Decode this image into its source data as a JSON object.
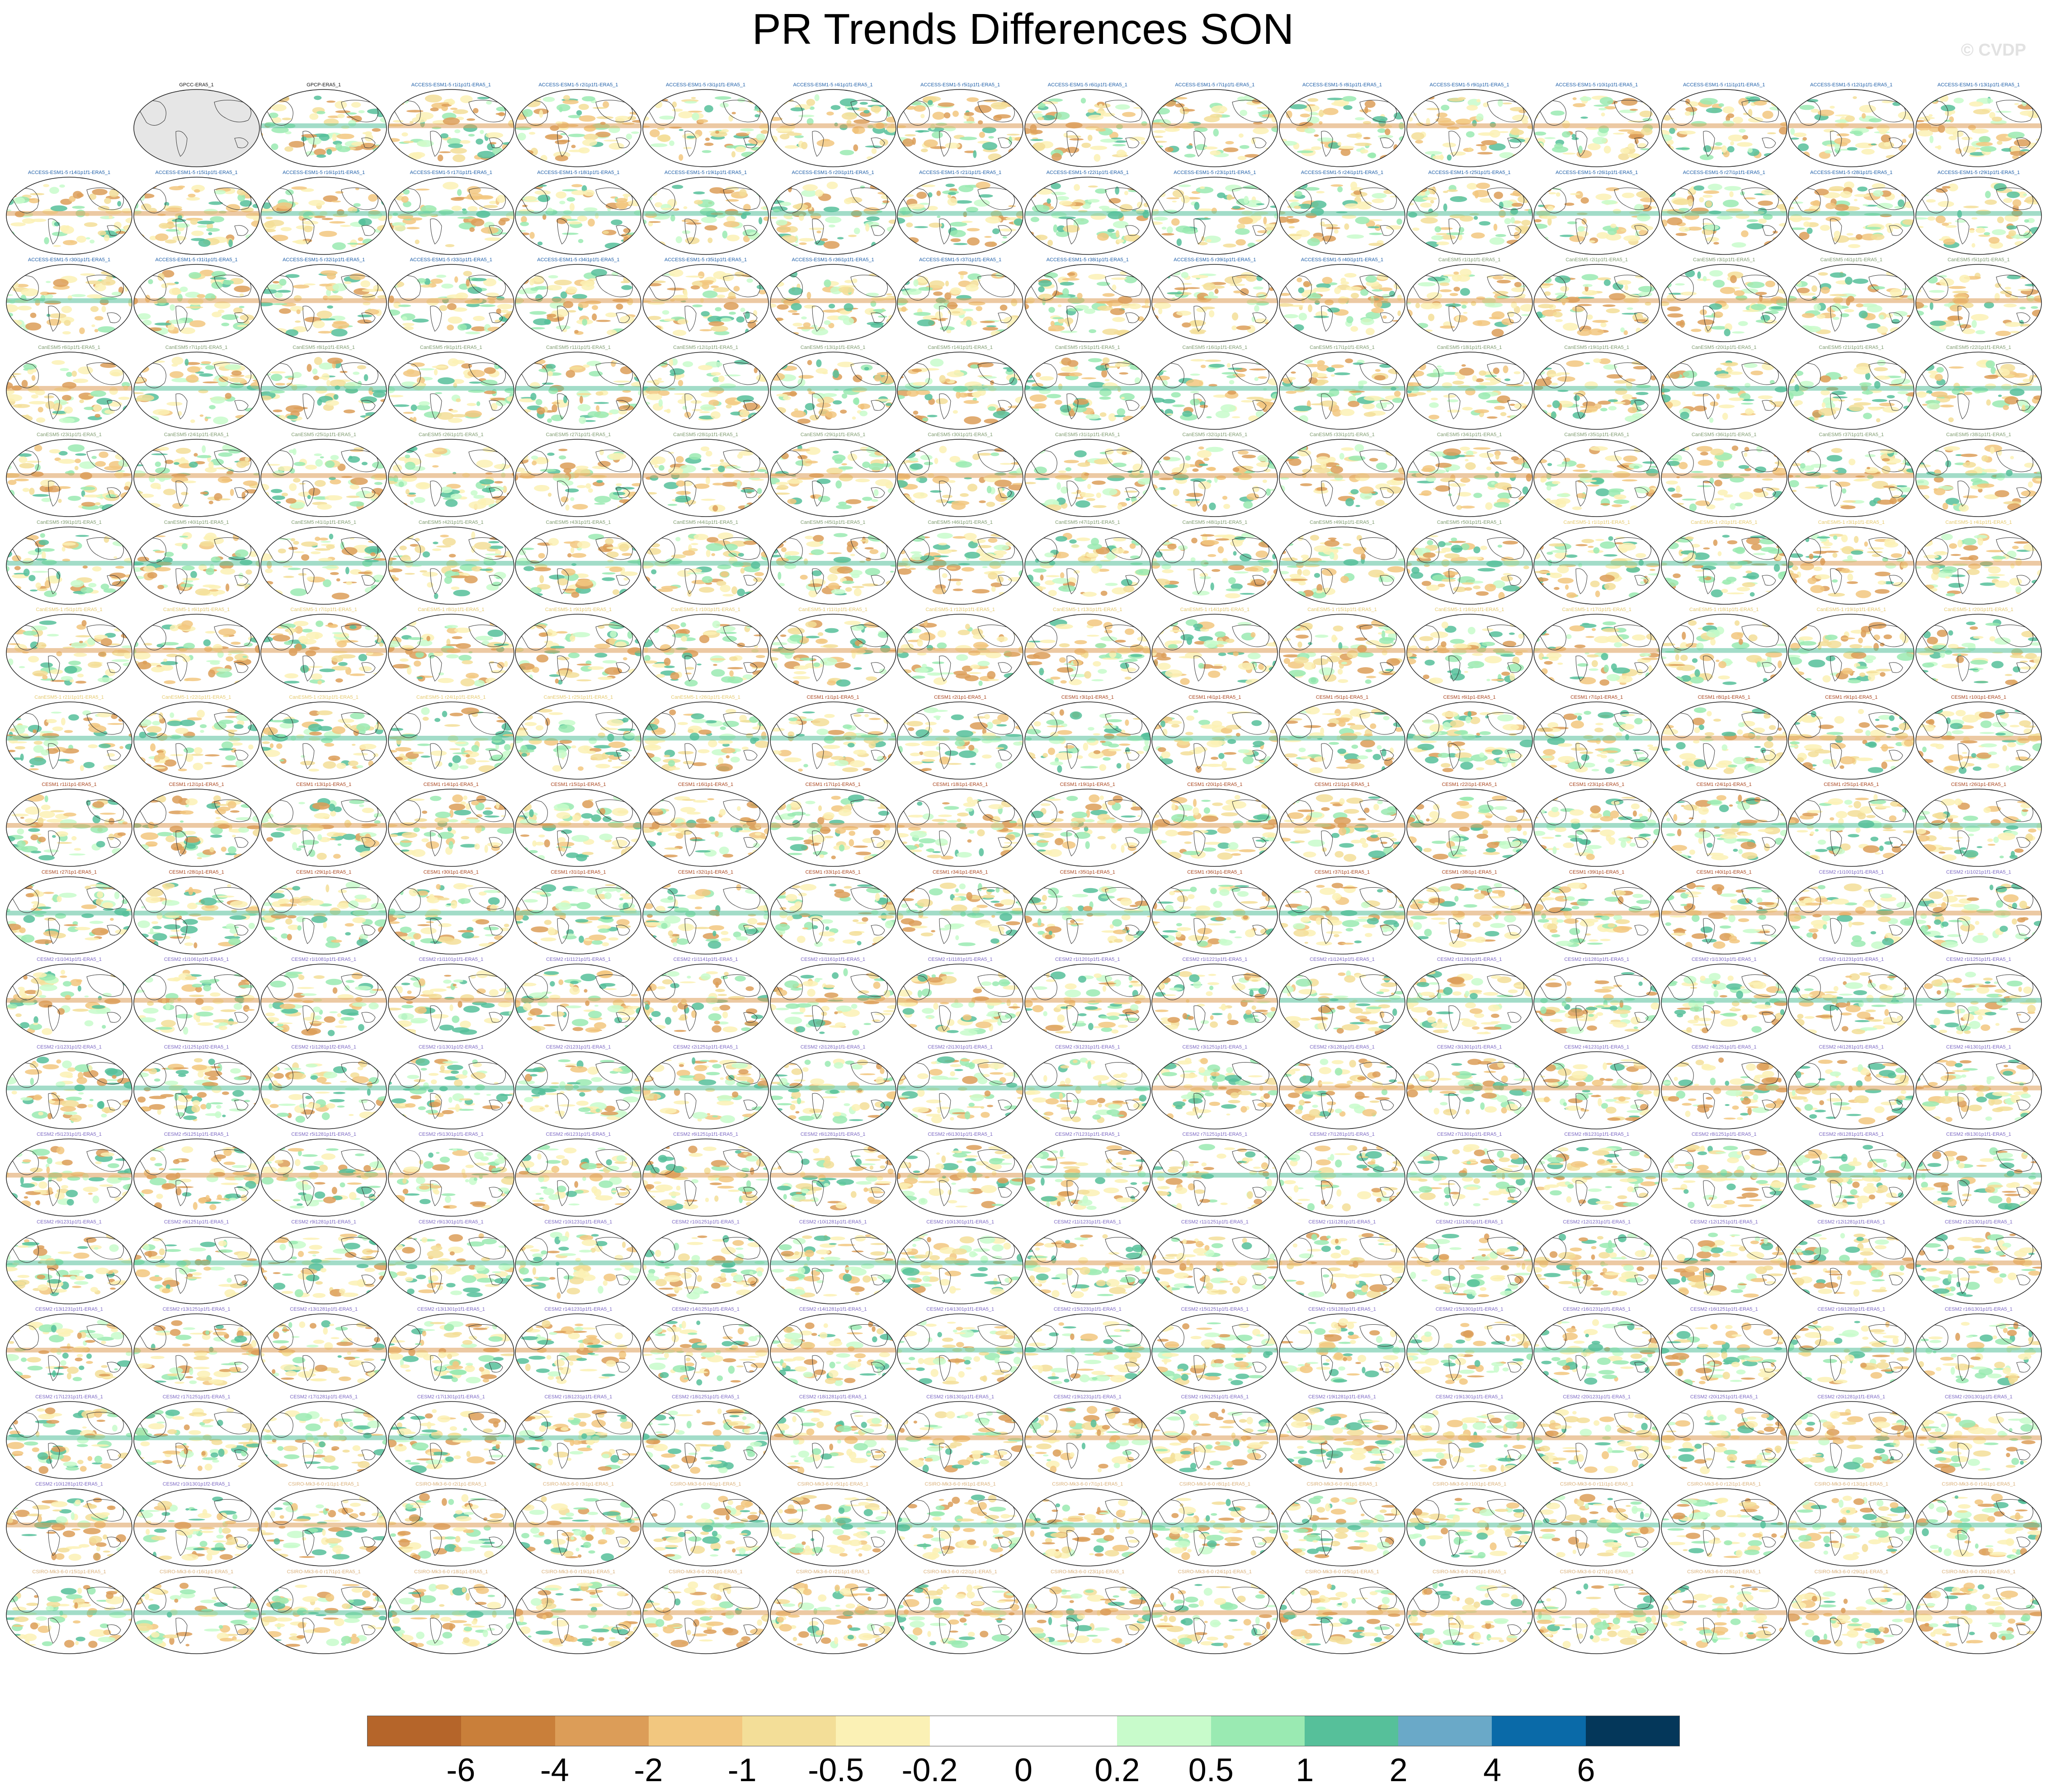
{
  "title": "PR Trends Differences SON",
  "watermark": "© CVDP",
  "colorbar": {
    "colors": [
      "#b5652a",
      "#c97f3a",
      "#dc9d58",
      "#f2c77f",
      "#f3de98",
      "#fbf1b5",
      "#ffffff",
      "#ffffff",
      "#c8fbcb",
      "#9aeab2",
      "#56c09a",
      "#6aa9c8",
      "#0a6aa8",
      "#04375a"
    ],
    "labels": [
      "-6",
      "-4",
      "-2",
      "-1",
      "-0.5",
      "-0.2",
      "0",
      "0.2",
      "0.5",
      "1",
      "2",
      "4",
      "6"
    ]
  },
  "panel_titles": [
    "GPCC-ERA5_1",
    "GPCP-ERA5_1",
    "ACCESS-ESM1-5 r1i1p1f1-ERA5_1",
    "ACCESS-ESM1-5 r2i1p1f1-ERA5_1",
    "ACCESS-ESM1-5 r3i1p1f1-ERA5_1",
    "ACCESS-ESM1-5 r4i1p1f1-ERA5_1",
    "ACCESS-ESM1-5 r5i1p1f1-ERA5_1",
    "ACCESS-ESM1-5 r6i1p1f1-ERA5_1",
    "ACCESS-ESM1-5 r7i1p1f1-ERA5_1",
    "ACCESS-ESM1-5 r8i1p1f1-ERA5_1",
    "ACCESS-ESM1-5 r9i1p1f1-ERA5_1",
    "ACCESS-ESM1-5 r10i1p1f1-ERA5_1",
    "ACCESS-ESM1-5 r11i1p1f1-ERA5_1",
    "ACCESS-ESM1-5 r12i1p1f1-ERA5_1",
    "ACCESS-ESM1-5 r13i1p1f1-ERA5_1",
    "ACCESS-ESM1-5 r14i1p1f1-ERA5_1",
    "ACCESS-ESM1-5 r15i1p1f1-ERA5_1",
    "ACCESS-ESM1-5 r16i1p1f1-ERA5_1",
    "ACCESS-ESM1-5 r17i1p1f1-ERA5_1",
    "ACCESS-ESM1-5 r18i1p1f1-ERA5_1",
    "ACCESS-ESM1-5 r19i1p1f1-ERA5_1",
    "ACCESS-ESM1-5 r20i1p1f1-ERA5_1",
    "ACCESS-ESM1-5 r21i1p1f1-ERA5_1",
    "ACCESS-ESM1-5 r22i1p1f1-ERA5_1",
    "ACCESS-ESM1-5 r23i1p1f1-ERA5_1",
    "ACCESS-ESM1-5 r24i1p1f1-ERA5_1",
    "ACCESS-ESM1-5 r25i1p1f1-ERA5_1",
    "ACCESS-ESM1-5 r26i1p1f1-ERA5_1",
    "ACCESS-ESM1-5 r27i1p1f1-ERA5_1",
    "ACCESS-ESM1-5 r28i1p1f1-ERA5_1",
    "ACCESS-ESM1-5 r29i1p1f1-ERA5_1",
    "ACCESS-ESM1-5 r30i1p1f1-ERA5_1",
    "ACCESS-ESM1-5 r31i1p1f1-ERA5_1",
    "ACCESS-ESM1-5 r32i1p1f1-ERA5_1",
    "ACCESS-ESM1-5 r33i1p1f1-ERA5_1",
    "ACCESS-ESM1-5 r34i1p1f1-ERA5_1",
    "ACCESS-ESM1-5 r35i1p1f1-ERA5_1",
    "ACCESS-ESM1-5 r36i1p1f1-ERA5_1",
    "ACCESS-ESM1-5 r37i1p1f1-ERA5_1",
    "ACCESS-ESM1-5 r38i1p1f1-ERA5_1",
    "ACCESS-ESM1-5 r39i1p1f1-ERA5_1",
    "ACCESS-ESM1-5 r40i1p1f1-ERA5_1",
    "CanESM5 r1i1p1f1-ERA5_1",
    "CanESM5 r2i1p1f1-ERA5_1",
    "CanESM5 r3i1p1f1-ERA5_1",
    "CanESM5 r4i1p1f1-ERA5_1",
    "CanESM5 r5i1p1f1-ERA5_1",
    "CanESM5 r6i1p1f1-ERA5_1",
    "CanESM5 r7i1p1f1-ERA5_1",
    "CanESM5 r8i1p1f1-ERA5_1",
    "CanESM5 r9i1p1f1-ERA5_1",
    "CanESM5 r11i1p1f1-ERA5_1",
    "CanESM5 r12i1p1f1-ERA5_1",
    "CanESM5 r13i1p1f1-ERA5_1",
    "CanESM5 r14i1p1f1-ERA5_1",
    "CanESM5 r15i1p1f1-ERA5_1",
    "CanESM5 r16i1p1f1-ERA5_1",
    "CanESM5 r17i1p1f1-ERA5_1",
    "CanESM5 r18i1p1f1-ERA5_1",
    "CanESM5 r19i1p1f1-ERA5_1",
    "CanESM5 r20i1p1f1-ERA5_1",
    "CanESM5 r21i1p1f1-ERA5_1",
    "CanESM5 r22i1p1f1-ERA5_1",
    "CanESM5 r23i1p1f1-ERA5_1",
    "CanESM5 r24i1p1f1-ERA5_1",
    "CanESM5 r25i1p1f1-ERA5_1",
    "CanESM5 r26i1p1f1-ERA5_1",
    "CanESM5 r27i1p1f1-ERA5_1",
    "CanESM5 r28i1p1f1-ERA5_1",
    "CanESM5 r29i1p1f1-ERA5_1",
    "CanESM5 r30i1p1f1-ERA5_1",
    "CanESM5 r31i1p1f1-ERA5_1",
    "CanESM5 r32i1p1f1-ERA5_1",
    "CanESM5 r33i1p1f1-ERA5_1",
    "CanESM5 r34i1p1f1-ERA5_1",
    "CanESM5 r35i1p1f1-ERA5_1",
    "CanESM5 r36i1p1f1-ERA5_1",
    "CanESM5 r37i1p1f1-ERA5_1",
    "CanESM5 r38i1p1f1-ERA5_1",
    "CanESM5 r39i1p1f1-ERA5_1",
    "CanESM5 r40i1p1f1-ERA5_1",
    "CanESM5 r41i1p1f1-ERA5_1",
    "CanESM5 r42i1p1f1-ERA5_1",
    "CanESM5 r43i1p1f1-ERA5_1",
    "CanESM5 r44i1p1f1-ERA5_1",
    "CanESM5 r45i1p1f1-ERA5_1",
    "CanESM5 r46i1p1f1-ERA5_1",
    "CanESM5 r47i1p1f1-ERA5_1",
    "CanESM5 r48i1p1f1-ERA5_1",
    "CanESM5 r49i1p1f1-ERA5_1",
    "CanESM5 r50i1p1f1-ERA5_1",
    "CanESM5-1 r1i1p1f1-ERA5_1",
    "CanESM5-1 r2i1p1f1-ERA5_1",
    "CanESM5-1 r3i1p1f1-ERA5_1",
    "CanESM5-1 r4i1p1f1-ERA5_1",
    "CanESM5-1 r5i1p1f1-ERA5_1",
    "CanESM5-1 r6i1p1f1-ERA5_1",
    "CanESM5-1 r7i1p1f1-ERA5_1",
    "CanESM5-1 r8i1p1f1-ERA5_1",
    "CanESM5-1 r9i1p1f1-ERA5_1",
    "CanESM5-1 r10i1p1f1-ERA5_1",
    "CanESM5-1 r11i1p1f1-ERA5_1",
    "CanESM5-1 r12i1p1f1-ERA5_1",
    "CanESM5-1 r13i1p1f1-ERA5_1",
    "CanESM5-1 r14i1p1f1-ERA5_1",
    "CanESM5-1 r15i1p1f1-ERA5_1",
    "CanESM5-1 r16i1p1f1-ERA5_1",
    "CanESM5-1 r17i1p1f1-ERA5_1",
    "CanESM5-1 r18i1p1f1-ERA5_1",
    "CanESM5-1 r19i1p1f1-ERA5_1",
    "CanESM5-1 r20i1p1f1-ERA5_1",
    "CanESM5-1 r21i1p1f1-ERA5_1",
    "CanESM5-1 r22i1p1f1-ERA5_1",
    "CanESM5-1 r23i1p1f1-ERA5_1",
    "CanESM5-1 r24i1p1f1-ERA5_1",
    "CanESM5-1 r25i1p1f1-ERA5_1",
    "CanESM5-1 r26i1p1f1-ERA5_1",
    "CESM1 r1i1p1-ERA5_1",
    "CESM1 r2i1p1-ERA5_1",
    "CESM1 r3i1p1-ERA5_1",
    "CESM1 r4i1p1-ERA5_1",
    "CESM1 r5i1p1-ERA5_1",
    "CESM1 r6i1p1-ERA5_1",
    "CESM1 r7i1p1-ERA5_1",
    "CESM1 r8i1p1-ERA5_1",
    "CESM1 r9i1p1-ERA5_1",
    "CESM1 r10i1p1-ERA5_1",
    "CESM1 r11i1p1-ERA5_1",
    "CESM1 r12i1p1-ERA5_1",
    "CESM1 r13i1p1-ERA5_1",
    "CESM1 r14i1p1-ERA5_1",
    "CESM1 r15i1p1-ERA5_1",
    "CESM1 r16i1p1-ERA5_1",
    "CESM1 r17i1p1-ERA5_1",
    "CESM1 r18i1p1-ERA5_1",
    "CESM1 r19i1p1-ERA5_1",
    "CESM1 r20i1p1-ERA5_1",
    "CESM1 r21i1p1-ERA5_1",
    "CESM1 r22i1p1-ERA5_1",
    "CESM1 r23i1p1-ERA5_1",
    "CESM1 r24i1p1-ERA5_1",
    "CESM1 r25i1p1-ERA5_1",
    "CESM1 r26i1p1-ERA5_1",
    "CESM1 r27i1p1-ERA5_1",
    "CESM1 r28i1p1-ERA5_1",
    "CESM1 r29i1p1-ERA5_1",
    "CESM1 r30i1p1-ERA5_1",
    "CESM1 r31i1p1-ERA5_1",
    "CESM1 r32i1p1-ERA5_1",
    "CESM1 r33i1p1-ERA5_1",
    "CESM1 r34i1p1-ERA5_1",
    "CESM1 r35i1p1-ERA5_1",
    "CESM1 r36i1p1-ERA5_1",
    "CESM1 r37i1p1-ERA5_1",
    "CESM1 r38i1p1-ERA5_1",
    "CESM1 r39i1p1-ERA5_1",
    "CESM1 r40i1p1-ERA5_1",
    "CESM2 r1i1001p1f1-ERA5_1",
    "CESM2 r1i1021p1f1-ERA5_1",
    "CESM2 r1i1041p1f1-ERA5_1",
    "CESM2 r1i1061p1f1-ERA5_1",
    "CESM2 r1i1081p1f1-ERA5_1",
    "CESM2 r1i1101p1f1-ERA5_1",
    "CESM2 r1i1121p1f1-ERA5_1",
    "CESM2 r1i1141p1f1-ERA5_1",
    "CESM2 r1i1161p1f1-ERA5_1",
    "CESM2 r1i1181p1f1-ERA5_1",
    "CESM2 r1i1201p1f1-ERA5_1",
    "CESM2 r1i1221p1f1-ERA5_1",
    "CESM2 r1i1241p1f1-ERA5_1",
    "CESM2 r1i1261p1f1-ERA5_1",
    "CESM2 r1i1281p1f1-ERA5_1",
    "CESM2 r1i1301p1f1-ERA5_1",
    "CESM2 r1i1231p1f1-ERA5_1",
    "CESM2 r1i1251p1f1-ERA5_1",
    "CESM2 r1i1231p1f2-ERA5_1",
    "CESM2 r1i1251p1f2-ERA5_1",
    "CESM2 r1i1281p1f2-ERA5_1",
    "CESM2 r1i1301p1f2-ERA5_1",
    "CESM2 r2i1231p1f1-ERA5_1",
    "CESM2 r2i1251p1f1-ERA5_1",
    "CESM2 r2i1281p1f1-ERA5_1",
    "CESM2 r2i1301p1f1-ERA5_1",
    "CESM2 r3i1231p1f1-ERA5_1",
    "CESM2 r3i1251p1f1-ERA5_1",
    "CESM2 r3i1281p1f1-ERA5_1",
    "CESM2 r3i1301p1f1-ERA5_1",
    "CESM2 r4i1231p1f1-ERA5_1",
    "CESM2 r4i1251p1f1-ERA5_1",
    "CESM2 r4i1281p1f1-ERA5_1",
    "CESM2 r4i1301p1f1-ERA5_1",
    "CESM2 r5i1231p1f1-ERA5_1",
    "CESM2 r5i1251p1f1-ERA5_1",
    "CESM2 r5i1281p1f1-ERA5_1",
    "CESM2 r5i1301p1f1-ERA5_1",
    "CESM2 r6i1231p1f1-ERA5_1",
    "CESM2 r6i1251p1f1-ERA5_1",
    "CESM2 r6i1281p1f1-ERA5_1",
    "CESM2 r6i1301p1f1-ERA5_1",
    "CESM2 r7i1231p1f1-ERA5_1",
    "CESM2 r7i1251p1f1-ERA5_1",
    "CESM2 r7i1281p1f1-ERA5_1",
    "CESM2 r7i1301p1f1-ERA5_1",
    "CESM2 r8i1231p1f1-ERA5_1",
    "CESM2 r8i1251p1f1-ERA5_1",
    "CESM2 r8i1281p1f1-ERA5_1",
    "CESM2 r8i1301p1f1-ERA5_1",
    "CESM2 r9i1231p1f1-ERA5_1",
    "CESM2 r9i1251p1f1-ERA5_1",
    "CESM2 r9i1281p1f1-ERA5_1",
    "CESM2 r9i1301p1f1-ERA5_1",
    "CESM2 r10i1231p1f1-ERA5_1",
    "CESM2 r10i1251p1f1-ERA5_1",
    "CESM2 r10i1281p1f1-ERA5_1",
    "CESM2 r10i1301p1f1-ERA5_1",
    "CESM2 r11i1231p1f1-ERA5_1",
    "CESM2 r11i1251p1f1-ERA5_1",
    "CESM2 r11i1281p1f1-ERA5_1",
    "CESM2 r11i1301p1f1-ERA5_1",
    "CESM2 r12i1231p1f1-ERA5_1",
    "CESM2 r12i1251p1f1-ERA5_1",
    "CESM2 r12i1281p1f1-ERA5_1",
    "CESM2 r12i1301p1f1-ERA5_1",
    "CESM2 r13i1231p1f1-ERA5_1",
    "CESM2 r13i1251p1f1-ERA5_1",
    "CESM2 r13i1281p1f1-ERA5_1",
    "CESM2 r13i1301p1f1-ERA5_1",
    "CESM2 r14i1231p1f1-ERA5_1",
    "CESM2 r14i1251p1f1-ERA5_1",
    "CESM2 r14i1281p1f1-ERA5_1",
    "CESM2 r14i1301p1f1-ERA5_1",
    "CESM2 r15i1231p1f1-ERA5_1",
    "CESM2 r15i1251p1f1-ERA5_1",
    "CESM2 r15i1281p1f1-ERA5_1",
    "CESM2 r15i1301p1f1-ERA5_1",
    "CESM2 r16i1231p1f1-ERA5_1",
    "CESM2 r16i1251p1f1-ERA5_1",
    "CESM2 r16i1281p1f1-ERA5_1",
    "CESM2 r16i1301p1f1-ERA5_1",
    "CESM2 r17i1231p1f1-ERA5_1",
    "CESM2 r17i1251p1f1-ERA5_1",
    "CESM2 r17i1281p1f1-ERA5_1",
    "CESM2 r17i1301p1f1-ERA5_1",
    "CESM2 r18i1231p1f1-ERA5_1",
    "CESM2 r18i1251p1f1-ERA5_1",
    "CESM2 r18i1281p1f1-ERA5_1",
    "CESM2 r18i1301p1f1-ERA5_1",
    "CESM2 r19i1231p1f1-ERA5_1",
    "CESM2 r19i1251p1f1-ERA5_1",
    "CESM2 r19i1281p1f1-ERA5_1",
    "CESM2 r19i1301p1f1-ERA5_1",
    "CESM2 r20i1231p1f1-ERA5_1",
    "CESM2 r20i1251p1f1-ERA5_1",
    "CESM2 r20i1281p1f1-ERA5_1",
    "CESM2 r20i1301p1f1-ERA5_1",
    "CESM2 r10i1281p1f2-ERA5_1",
    "CESM2 r10i1301p1f2-ERA5_1",
    "CSIRO-Mk3-6-0 r1i1p1-ERA5_1",
    "CSIRO-Mk3-6-0 r2i1p1-ERA5_1",
    "CSIRO-Mk3-6-0 r3i1p1-ERA5_1",
    "CSIRO-Mk3-6-0 r4i1p1-ERA5_1",
    "CSIRO-Mk3-6-0 r5i1p1-ERA5_1",
    "CSIRO-Mk3-6-0 r6i1p1-ERA5_1",
    "CSIRO-Mk3-6-0 r7i1p1-ERA5_1",
    "CSIRO-Mk3-6-0 r8i1p1-ERA5_1",
    "CSIRO-Mk3-6-0 r9i1p1-ERA5_1",
    "CSIRO-Mk3-6-0 r10i1p1-ERA5_1",
    "CSIRO-Mk3-6-0 r11i1p1-ERA5_1",
    "CSIRO-Mk3-6-0 r12i1p1-ERA5_1",
    "CSIRO-Mk3-6-0 r13i1p1-ERA5_1",
    "CSIRO-Mk3-6-0 r14i1p1-ERA5_1",
    "CSIRO-Mk3-6-0 r15i1p1-ERA5_1",
    "CSIRO-Mk3-6-0 r16i1p1-ERA5_1",
    "CSIRO-Mk3-6-0 r17i1p1-ERA5_1",
    "CSIRO-Mk3-6-0 r18i1p1-ERA5_1",
    "CSIRO-Mk3-6-0 r19i1p1-ERA5_1",
    "CSIRO-Mk3-6-0 r20i1p1-ERA5_1",
    "CSIRO-Mk3-6-0 r21i1p1-ERA5_1",
    "CSIRO-Mk3-6-0 r22i1p1-ERA5_1",
    "CSIRO-Mk3-6-0 r23i1p1-ERA5_1",
    "CSIRO-Mk3-6-0 r24i1p1-ERA5_1",
    "CSIRO-Mk3-6-0 r25i1p1-ERA5_1",
    "CSIRO-Mk3-6-0 r26i1p1-ERA5_1",
    "CSIRO-Mk3-6-0 r27i1p1-ERA5_1",
    "CSIRO-Mk3-6-0 r28i1p1-ERA5_1",
    "CSIRO-Mk3-6-0 r29i1p1-ERA5_1",
    "CSIRO-Mk3-6-0 r30i1p1-ERA5_1"
  ],
  "title_colors": {
    "obs": "#111111",
    "ACCESS": "#1f5fa8",
    "CanESM5": "#7d9a6e",
    "CanESM5-1": "#e5c96d",
    "CESM1": "#a8431c",
    "CESM2": "#7b67c2",
    "CSIRO": "#d9b07a"
  }
}
